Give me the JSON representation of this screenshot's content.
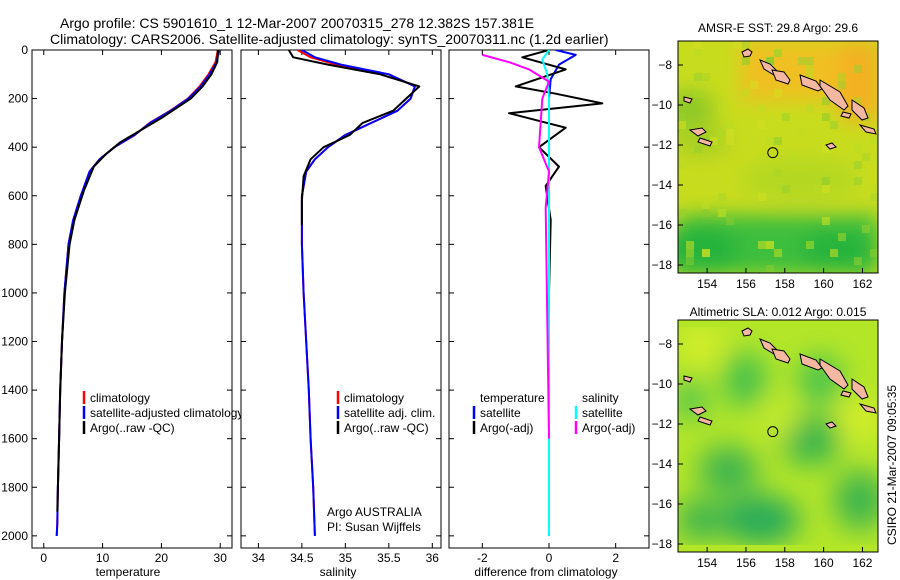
{
  "header": {
    "title_line1": "Argo profile: CS 5901610_1 12-Mar-2007 20070315_278 12.382S 157.381E",
    "title_line2": "Climatology: CARS2006. Satellite-adjusted climatology: synTS_20070311.nc (1.2d earlier)"
  },
  "side_label": "CSIRO 21-Mar-2007 09:05:35",
  "colors": {
    "climatology": "#ff0000",
    "satellite": "#0000ff",
    "argo": "#000000",
    "argo_salinity_diff": "#ff00ff",
    "satellite_salinity_diff": "#00ffff",
    "land": "#f4b8a0"
  },
  "chart_data": [
    {
      "type": "line",
      "id": "temperature_panel",
      "xlabel": "temperature",
      "ylabel": "",
      "xlim": [
        -2,
        32
      ],
      "ylim": [
        2050,
        0
      ],
      "xticks": [
        0,
        10,
        20,
        30
      ],
      "yticks": [
        0,
        200,
        400,
        600,
        800,
        1000,
        1200,
        1400,
        1600,
        1800,
        2000
      ],
      "legend": [
        "climatology",
        "satellite-adjusted climatology",
        "Argo(..raw -QC)"
      ],
      "legend_placement": "bottom-right",
      "series": [
        {
          "name": "climatology",
          "color": "#ff0000",
          "x": [
            29.6,
            29.2,
            28.0,
            26.5,
            24.5,
            21.5,
            18.0,
            15.5,
            12.0,
            9.5,
            7.8,
            6.3,
            5.0,
            4.2,
            3.5,
            3.1,
            2.8,
            2.6,
            2.4,
            2.3,
            2.2
          ],
          "y": [
            0,
            50,
            100,
            150,
            200,
            250,
            300,
            350,
            400,
            450,
            500,
            600,
            700,
            800,
            1000,
            1200,
            1400,
            1600,
            1800,
            1950,
            2000
          ]
        },
        {
          "name": "satellite-adjusted climatology",
          "color": "#0000ff",
          "x": [
            29.8,
            29.4,
            28.2,
            26.7,
            24.6,
            21.6,
            18.1,
            15.4,
            12.0,
            9.5,
            7.8,
            6.3,
            5.0,
            4.2,
            3.5,
            3.1,
            2.8,
            2.6,
            2.4,
            2.3,
            2.2
          ],
          "y": [
            0,
            50,
            100,
            150,
            200,
            250,
            300,
            350,
            400,
            450,
            500,
            600,
            700,
            800,
            1000,
            1200,
            1400,
            1600,
            1800,
            1950,
            2000
          ]
        },
        {
          "name": "Argo(..raw -QC)",
          "color": "#000000",
          "x": [
            29.6,
            29.5,
            28.5,
            27.0,
            25.0,
            22.5,
            20.0,
            16.5,
            13.0,
            10.5,
            8.5,
            6.8,
            5.2,
            4.4,
            3.6,
            3.1,
            2.8,
            2.6,
            2.4,
            2.3
          ],
          "y": [
            0,
            50,
            100,
            150,
            200,
            240,
            280,
            330,
            380,
            430,
            480,
            580,
            700,
            800,
            1000,
            1200,
            1400,
            1600,
            1800,
            1900
          ]
        }
      ]
    },
    {
      "type": "line",
      "id": "salinity_panel",
      "xlabel": "salinity",
      "ylabel": "",
      "xlim": [
        33.8,
        36.1
      ],
      "ylim": [
        2050,
        0
      ],
      "xticks": [
        34,
        34.5,
        35,
        35.5,
        36
      ],
      "legend": [
        "climatology",
        "satellite adj. clim.",
        "Argo(..raw -QC)"
      ],
      "legend_placement": "bottom-right",
      "annotations": [
        "Argo AUSTRALIA",
        "PI: Susan Wijffels"
      ],
      "series": [
        {
          "name": "climatology",
          "color": "#ff0000",
          "x": [
            34.45,
            34.6,
            34.9,
            35.5,
            35.8,
            35.75,
            35.6,
            35.3,
            35.0,
            34.8,
            34.65,
            34.55,
            34.5,
            34.5,
            34.52,
            34.55,
            34.58,
            34.6,
            34.63,
            34.65
          ],
          "y": [
            0,
            30,
            60,
            100,
            150,
            200,
            250,
            300,
            350,
            400,
            450,
            500,
            600,
            800,
            1000,
            1200,
            1400,
            1600,
            1800,
            2000
          ]
        },
        {
          "name": "satellite adj. clim.",
          "color": "#0000ff",
          "x": [
            34.5,
            34.65,
            34.95,
            35.5,
            35.8,
            35.75,
            35.6,
            35.3,
            35.0,
            34.8,
            34.65,
            34.55,
            34.5,
            34.5,
            34.52,
            34.55,
            34.58,
            34.6,
            34.63,
            34.65
          ],
          "y": [
            0,
            30,
            60,
            100,
            150,
            200,
            250,
            300,
            350,
            400,
            450,
            500,
            600,
            800,
            1000,
            1200,
            1400,
            1600,
            1800,
            2000
          ]
        },
        {
          "name": "Argo(..raw -QC)",
          "color": "#000000",
          "x": [
            34.35,
            34.4,
            34.8,
            35.4,
            35.85,
            35.7,
            35.55,
            35.2,
            35.05,
            34.75,
            34.6,
            34.52,
            34.5,
            34.5
          ],
          "y": [
            0,
            30,
            60,
            100,
            150,
            200,
            250,
            300,
            350,
            400,
            450,
            520,
            620,
            720
          ]
        }
      ]
    },
    {
      "type": "line",
      "id": "difference_panel",
      "xlabel": "difference from climatology",
      "ylabel": "",
      "xlim": [
        -3.0,
        3.0
      ],
      "ylim": [
        2050,
        0
      ],
      "xticks": [
        -2,
        0,
        2
      ],
      "legend": [
        "temperature",
        "satellite",
        "Argo(-adj)",
        "salinity",
        "satellite",
        "Argo(-adj)"
      ],
      "legend_placement": "bottom",
      "series": [
        {
          "name": "temperature satellite",
          "color": "#0000ff",
          "x": [
            0.2,
            0.8,
            0.3,
            0.05,
            0.0,
            0.0,
            0.0,
            0.0
          ],
          "y": [
            0,
            20,
            60,
            120,
            200,
            400,
            1000,
            2000
          ]
        },
        {
          "name": "temperature Argo(-adj)",
          "color": "#000000",
          "x": [
            0.0,
            -0.8,
            0.5,
            -1.0,
            0.2,
            1.6,
            -1.2,
            0.5,
            -0.3,
            0.3,
            -0.1,
            0.05,
            0.0,
            0.0
          ],
          "y": [
            0,
            30,
            80,
            150,
            180,
            220,
            260,
            320,
            400,
            480,
            560,
            700,
            1000,
            1500
          ]
        },
        {
          "name": "salinity satellite",
          "color": "#00ffff",
          "x": [
            0.0,
            -0.2,
            -0.05,
            0.0,
            0.0,
            0.0
          ],
          "y": [
            0,
            40,
            100,
            200,
            800,
            2000
          ]
        },
        {
          "name": "salinity Argo(-adj)",
          "color": "#ff00ff",
          "x": [
            -2.0,
            -1.2,
            -0.6,
            0.0,
            -0.2,
            -0.3,
            0.0,
            -0.1,
            0.0
          ],
          "y": [
            20,
            50,
            80,
            130,
            200,
            400,
            500,
            650,
            1600
          ]
        }
      ]
    },
    {
      "type": "heatmap",
      "id": "sst_map",
      "title": "AMSR-E SST: 29.8 Argo: 29.6",
      "xlim": [
        152.5,
        162.8
      ],
      "ylim": [
        -18.4,
        -6.8
      ],
      "xticks": [
        154,
        156,
        158,
        160,
        162
      ],
      "yticks": [
        -8,
        -10,
        -12,
        -14,
        -16,
        -18
      ],
      "marker": {
        "lon": 157.381,
        "lat": -12.382
      }
    },
    {
      "type": "heatmap",
      "id": "sla_map",
      "title": "Altimetric SLA: 0.012 Argo: 0.015",
      "xlim": [
        152.5,
        162.8
      ],
      "ylim": [
        -18.4,
        -6.8
      ],
      "xticks": [
        154,
        156,
        158,
        160,
        162
      ],
      "yticks": [
        -8,
        -10,
        -12,
        -14,
        -16,
        -18
      ],
      "marker": {
        "lon": 157.381,
        "lat": -12.382
      }
    }
  ]
}
